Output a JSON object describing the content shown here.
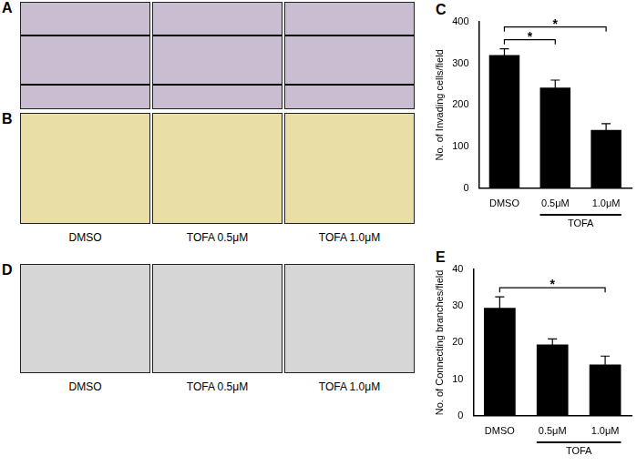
{
  "image_panels": [
    {
      "label": "A"
    },
    {
      "label": "B",
      "captions": [
        "DMSO",
        "TOFA 0.5μM",
        "TOFA 1.0μM"
      ]
    },
    {
      "label": "D",
      "captions": [
        "DMSO",
        "TOFA 0.5μM",
        "TOFA 1.0μM"
      ]
    }
  ],
  "chart_data": [
    {
      "type": "bar",
      "panel_label": "C",
      "y_label": "No. of Invading cells/field",
      "categories": [
        "DMSO",
        "0.5μM",
        "1.0μM"
      ],
      "values": [
        320,
        242,
        140
      ],
      "errors": [
        15,
        18,
        15
      ],
      "color": "#000000",
      "ylim": [
        0,
        400
      ],
      "yticks": [
        0,
        100,
        200,
        300,
        400
      ],
      "grid": false,
      "group": {
        "label": "TOFA",
        "categories": [
          "0.5μM",
          "1.0μM"
        ]
      },
      "annotations": [
        {
          "from": "DMSO",
          "to": "0.5μM",
          "text": "*"
        },
        {
          "from": "DMSO",
          "to": "1.0μM",
          "text": "*"
        }
      ]
    },
    {
      "type": "bar",
      "panel_label": "E",
      "y_label": "No. of Connecting branches/field",
      "categories": [
        "DMSO",
        "0.5μM",
        "1.0μM"
      ],
      "values": [
        29.5,
        19.5,
        14
      ],
      "errors": [
        3,
        1.5,
        2.3
      ],
      "color": "#000000",
      "ylim": [
        0,
        40
      ],
      "yticks": [
        0,
        10,
        20,
        30,
        40
      ],
      "grid": false,
      "group": {
        "label": "TOFA",
        "categories": [
          "0.5μM",
          "1.0μM"
        ]
      },
      "annotations": [
        {
          "from": "DMSO",
          "to": "1.0μM",
          "text": "*"
        }
      ]
    }
  ]
}
